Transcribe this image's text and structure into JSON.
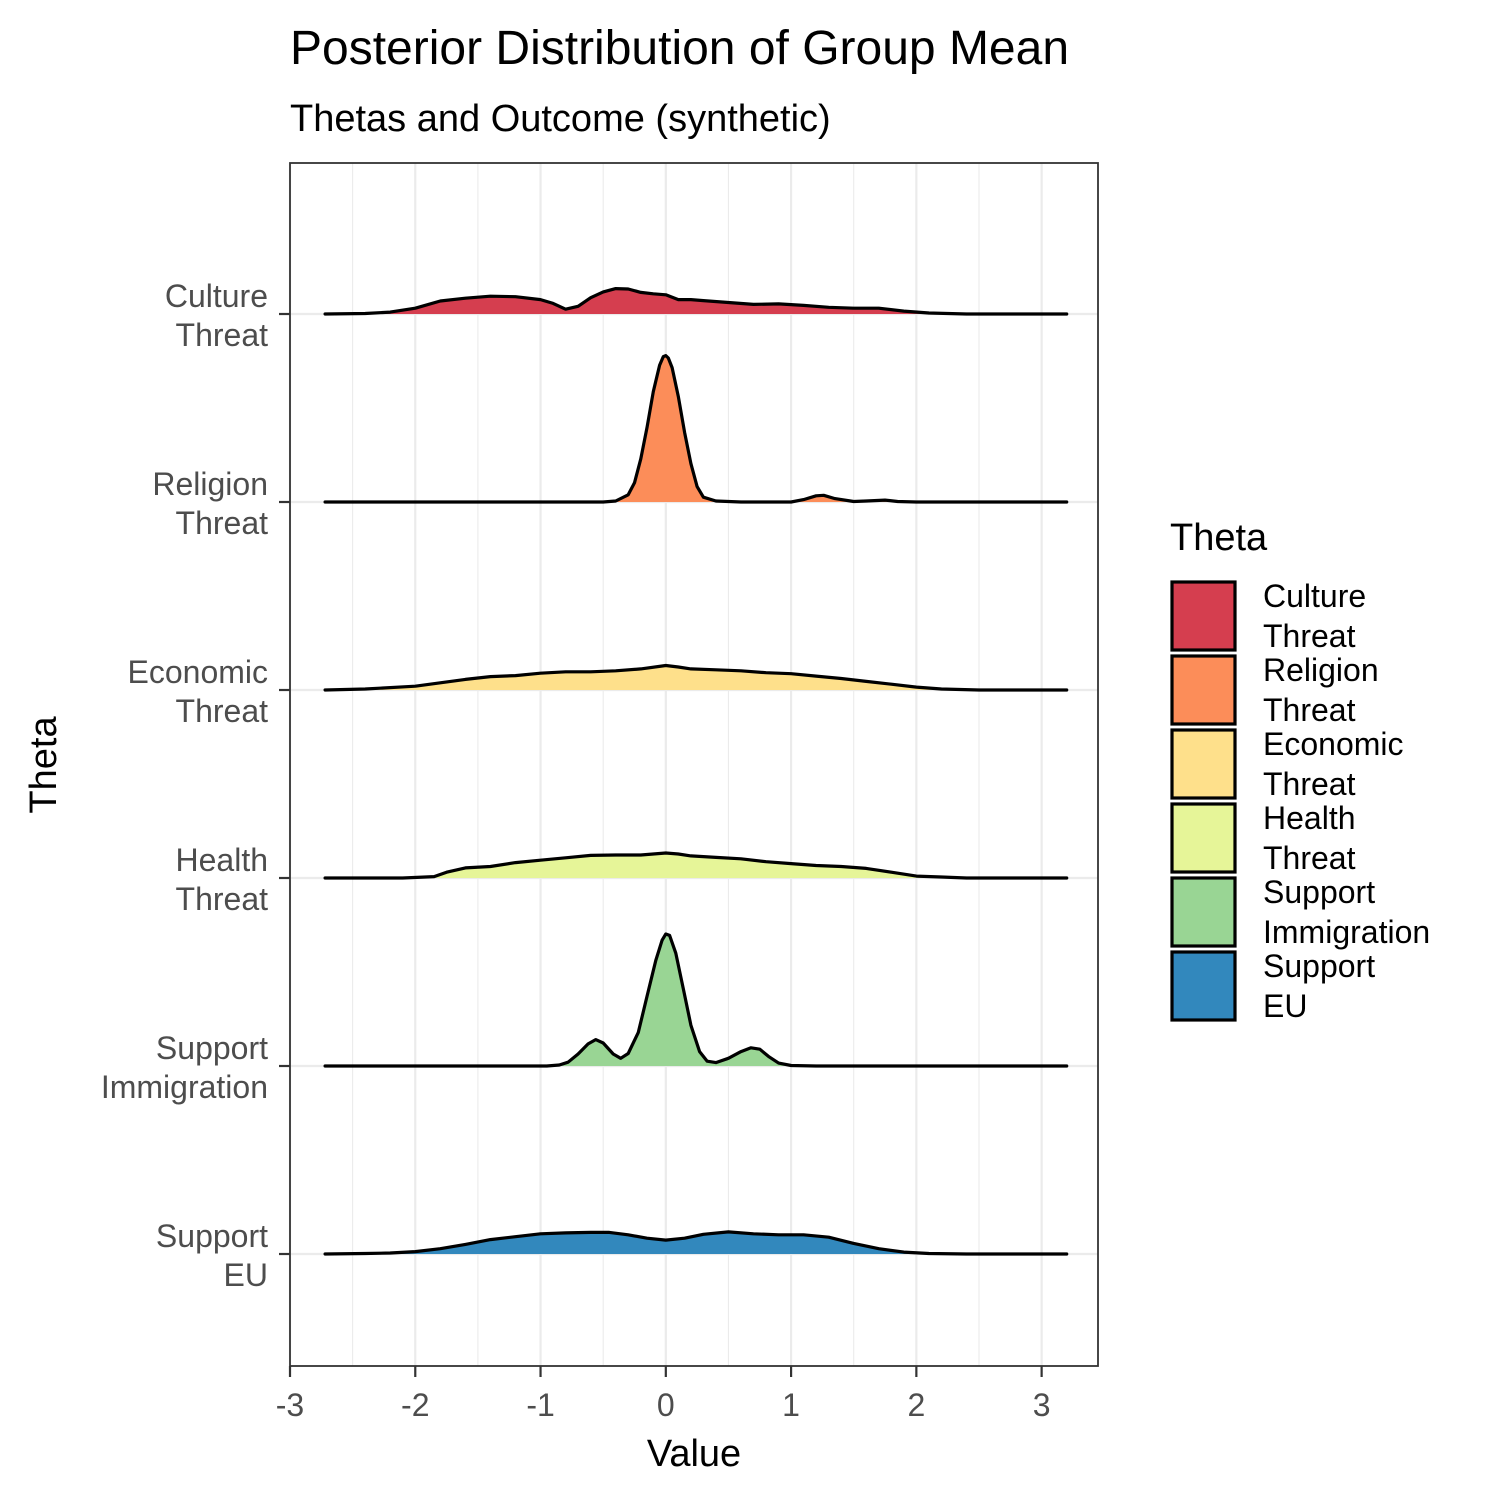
{
  "chart_data": {
    "type": "area",
    "subtype": "ridgeline-density",
    "title": "Posterior Distribution of Group Mean",
    "subtitle": "Thetas and Outcome (synthetic)",
    "xlabel": "Value",
    "ylabel": "Theta",
    "xlim": [
      -3,
      3.45
    ],
    "x_ticks": [
      "-3",
      "-2",
      "-1",
      "0",
      "1",
      "2",
      "3"
    ],
    "x_tick_values": [
      -3,
      -2,
      -1,
      0,
      1,
      2,
      3
    ],
    "grid": true,
    "legend": {
      "title": "Theta",
      "position": "right"
    },
    "categories": [
      "Culture\nThreat",
      "Religion\nThreat",
      "Economic\nThreat",
      "Health\nThreat",
      "Support\nImmigration",
      "Support\nEU"
    ],
    "series": [
      {
        "name": "Culture\nThreat",
        "color": "#D53E4F",
        "points": [
          [
            -2.72,
            0.0
          ],
          [
            -2.4,
            0.01
          ],
          [
            -2.2,
            0.04
          ],
          [
            -2.0,
            0.12
          ],
          [
            -1.8,
            0.27
          ],
          [
            -1.6,
            0.33
          ],
          [
            -1.4,
            0.37
          ],
          [
            -1.2,
            0.36
          ],
          [
            -1.0,
            0.3
          ],
          [
            -0.9,
            0.22
          ],
          [
            -0.8,
            0.1
          ],
          [
            -0.7,
            0.16
          ],
          [
            -0.6,
            0.34
          ],
          [
            -0.5,
            0.46
          ],
          [
            -0.4,
            0.53
          ],
          [
            -0.3,
            0.52
          ],
          [
            -0.2,
            0.45
          ],
          [
            -0.1,
            0.42
          ],
          [
            0.0,
            0.4
          ],
          [
            0.1,
            0.3
          ],
          [
            0.2,
            0.3
          ],
          [
            0.3,
            0.28
          ],
          [
            0.5,
            0.24
          ],
          [
            0.7,
            0.2
          ],
          [
            0.9,
            0.21
          ],
          [
            1.1,
            0.18
          ],
          [
            1.3,
            0.14
          ],
          [
            1.5,
            0.12
          ],
          [
            1.7,
            0.12
          ],
          [
            1.9,
            0.06
          ],
          [
            2.1,
            0.02
          ],
          [
            2.4,
            0.0
          ],
          [
            3.2,
            0.0
          ]
        ]
      },
      {
        "name": "Religion\nThreat",
        "color": "#FC8D59",
        "points": [
          [
            -2.72,
            0.0
          ],
          [
            -0.5,
            0.0
          ],
          [
            -0.4,
            0.02
          ],
          [
            -0.3,
            0.15
          ],
          [
            -0.25,
            0.4
          ],
          [
            -0.2,
            0.9
          ],
          [
            -0.15,
            1.55
          ],
          [
            -0.1,
            2.3
          ],
          [
            -0.05,
            2.85
          ],
          [
            -0.02,
            3.03
          ],
          [
            0.0,
            3.05
          ],
          [
            0.02,
            3.0
          ],
          [
            0.05,
            2.8
          ],
          [
            0.1,
            2.2
          ],
          [
            0.15,
            1.45
          ],
          [
            0.2,
            0.8
          ],
          [
            0.25,
            0.32
          ],
          [
            0.3,
            0.1
          ],
          [
            0.4,
            0.02
          ],
          [
            0.6,
            0.0
          ],
          [
            1.0,
            0.0
          ],
          [
            1.1,
            0.05
          ],
          [
            1.2,
            0.13
          ],
          [
            1.26,
            0.14
          ],
          [
            1.35,
            0.07
          ],
          [
            1.5,
            0.01
          ],
          [
            1.6,
            0.02
          ],
          [
            1.75,
            0.04
          ],
          [
            1.85,
            0.01
          ],
          [
            2.0,
            0.0
          ],
          [
            3.2,
            0.0
          ]
        ]
      },
      {
        "name": "Economic\nThreat",
        "color": "#FEE08B",
        "points": [
          [
            -2.72,
            0.0
          ],
          [
            -2.4,
            0.02
          ],
          [
            -2.0,
            0.08
          ],
          [
            -1.8,
            0.15
          ],
          [
            -1.6,
            0.22
          ],
          [
            -1.4,
            0.28
          ],
          [
            -1.2,
            0.3
          ],
          [
            -1.0,
            0.35
          ],
          [
            -0.8,
            0.38
          ],
          [
            -0.6,
            0.38
          ],
          [
            -0.4,
            0.4
          ],
          [
            -0.2,
            0.44
          ],
          [
            0.0,
            0.51
          ],
          [
            0.1,
            0.48
          ],
          [
            0.2,
            0.44
          ],
          [
            0.4,
            0.42
          ],
          [
            0.6,
            0.4
          ],
          [
            0.8,
            0.36
          ],
          [
            1.0,
            0.34
          ],
          [
            1.2,
            0.29
          ],
          [
            1.4,
            0.24
          ],
          [
            1.6,
            0.18
          ],
          [
            1.8,
            0.12
          ],
          [
            2.0,
            0.06
          ],
          [
            2.2,
            0.02
          ],
          [
            2.5,
            0.0
          ],
          [
            3.2,
            0.0
          ]
        ]
      },
      {
        "name": "Health\nThreat",
        "color": "#E6F598",
        "points": [
          [
            -2.72,
            0.0
          ],
          [
            -2.1,
            0.0
          ],
          [
            -1.85,
            0.03
          ],
          [
            -1.75,
            0.12
          ],
          [
            -1.6,
            0.21
          ],
          [
            -1.4,
            0.24
          ],
          [
            -1.2,
            0.32
          ],
          [
            -1.0,
            0.37
          ],
          [
            -0.8,
            0.42
          ],
          [
            -0.6,
            0.47
          ],
          [
            -0.4,
            0.48
          ],
          [
            -0.2,
            0.48
          ],
          [
            0.0,
            0.52
          ],
          [
            0.1,
            0.5
          ],
          [
            0.2,
            0.46
          ],
          [
            0.4,
            0.43
          ],
          [
            0.6,
            0.4
          ],
          [
            0.8,
            0.34
          ],
          [
            1.0,
            0.3
          ],
          [
            1.2,
            0.26
          ],
          [
            1.4,
            0.24
          ],
          [
            1.6,
            0.2
          ],
          [
            1.8,
            0.12
          ],
          [
            2.0,
            0.04
          ],
          [
            2.2,
            0.02
          ],
          [
            2.4,
            0.0
          ],
          [
            3.2,
            0.0
          ]
        ]
      },
      {
        "name": "Support\nImmigration",
        "color": "#99D594",
        "points": [
          [
            -2.72,
            0.0
          ],
          [
            -0.95,
            0.0
          ],
          [
            -0.85,
            0.02
          ],
          [
            -0.78,
            0.08
          ],
          [
            -0.7,
            0.25
          ],
          [
            -0.62,
            0.46
          ],
          [
            -0.56,
            0.55
          ],
          [
            -0.5,
            0.48
          ],
          [
            -0.42,
            0.25
          ],
          [
            -0.36,
            0.16
          ],
          [
            -0.3,
            0.26
          ],
          [
            -0.22,
            0.7
          ],
          [
            -0.15,
            1.45
          ],
          [
            -0.08,
            2.2
          ],
          [
            -0.03,
            2.62
          ],
          [
            0.0,
            2.75
          ],
          [
            0.03,
            2.72
          ],
          [
            0.08,
            2.35
          ],
          [
            0.14,
            1.6
          ],
          [
            0.2,
            0.85
          ],
          [
            0.27,
            0.3
          ],
          [
            0.33,
            0.1
          ],
          [
            0.4,
            0.07
          ],
          [
            0.5,
            0.16
          ],
          [
            0.6,
            0.3
          ],
          [
            0.68,
            0.38
          ],
          [
            0.75,
            0.35
          ],
          [
            0.82,
            0.2
          ],
          [
            0.9,
            0.06
          ],
          [
            1.0,
            0.01
          ],
          [
            1.2,
            0.0
          ],
          [
            3.2,
            0.0
          ]
        ]
      },
      {
        "name": "Support\nEU",
        "color": "#3288BD",
        "points": [
          [
            -2.72,
            0.0
          ],
          [
            -2.4,
            0.01
          ],
          [
            -2.2,
            0.02
          ],
          [
            -2.0,
            0.05
          ],
          [
            -1.8,
            0.11
          ],
          [
            -1.6,
            0.2
          ],
          [
            -1.4,
            0.3
          ],
          [
            -1.2,
            0.36
          ],
          [
            -1.0,
            0.42
          ],
          [
            -0.8,
            0.44
          ],
          [
            -0.6,
            0.45
          ],
          [
            -0.45,
            0.45
          ],
          [
            -0.3,
            0.4
          ],
          [
            -0.15,
            0.33
          ],
          [
            0.0,
            0.29
          ],
          [
            0.15,
            0.33
          ],
          [
            0.3,
            0.41
          ],
          [
            0.5,
            0.46
          ],
          [
            0.7,
            0.42
          ],
          [
            0.9,
            0.4
          ],
          [
            1.1,
            0.4
          ],
          [
            1.3,
            0.35
          ],
          [
            1.5,
            0.22
          ],
          [
            1.7,
            0.11
          ],
          [
            1.9,
            0.04
          ],
          [
            2.1,
            0.01
          ],
          [
            2.4,
            0.0
          ],
          [
            3.2,
            0.0
          ]
        ]
      }
    ]
  }
}
